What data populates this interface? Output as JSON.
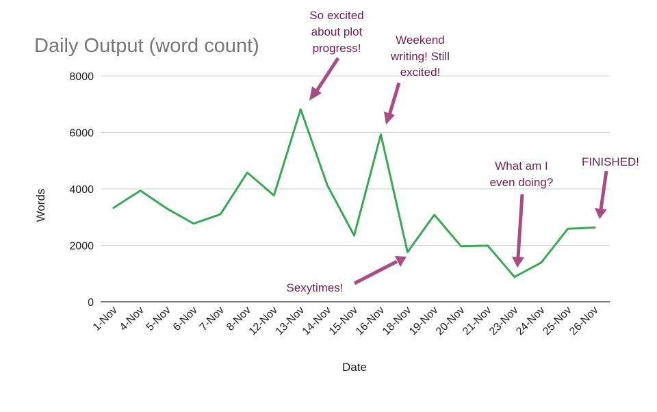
{
  "chart_data": {
    "type": "line",
    "title": "Daily Output (word count)",
    "xlabel": "Date",
    "ylabel": "Words",
    "ylim": [
      0,
      8000
    ],
    "yticks": [
      0,
      2000,
      4000,
      6000,
      8000
    ],
    "grid": true,
    "categories": [
      "1-Nov",
      "4-Nov",
      "5-Nov",
      "6-Nov",
      "7-Nov",
      "8-Nov",
      "12-Nov",
      "13-Nov",
      "14-Nov",
      "15-Nov",
      "16-Nov",
      "18-Nov",
      "19-Nov",
      "20-Nov",
      "21-Nov",
      "23-Nov",
      "24-Nov",
      "25-Nov",
      "26-Nov"
    ],
    "series": [
      {
        "color": "#3aa757",
        "values": [
          3330,
          3940,
          3300,
          2770,
          3100,
          4580,
          3770,
          6820,
          4120,
          2350,
          5930,
          1760,
          3080,
          1970,
          1990,
          880,
          1390,
          2590,
          2630
        ]
      }
    ],
    "annotations": [
      {
        "text_lines": [
          "So excited",
          "about plot",
          "progress!"
        ],
        "point_index": 7
      },
      {
        "text_lines": [
          "Weekend",
          "writing! Still",
          "excited!"
        ],
        "point_index": 10
      },
      {
        "text_lines": [
          "Sexytimes!"
        ],
        "point_index": 11
      },
      {
        "text_lines": [
          "What am I",
          "even doing?"
        ],
        "point_index": 15
      },
      {
        "text_lines": [
          "FINISHED!"
        ],
        "point_index": 18
      }
    ],
    "annotation_color": "#6b1f4f",
    "arrow_color": "#a64d82"
  }
}
